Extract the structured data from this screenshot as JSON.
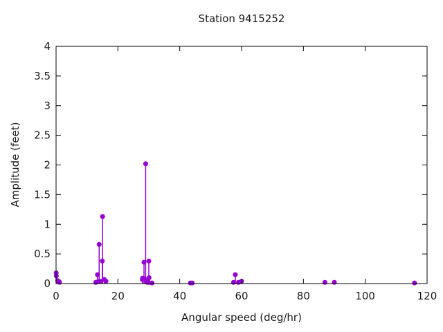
{
  "title": "Station 9415252",
  "colors": {
    "accent": "#9400d3",
    "axis": "#000000",
    "text": "#1a1a1a",
    "background": "#ffffff"
  },
  "chart_data": {
    "type": "scatter",
    "style": "stem",
    "title": "Station 9415252",
    "xlabel": "Angular speed (deg/hr)",
    "ylabel": "Amplitude (feet)",
    "xlim": [
      0,
      120
    ],
    "ylim": [
      0,
      4
    ],
    "grid": false,
    "legend": "none",
    "xticks": {
      "values": [
        0,
        20,
        40,
        60,
        80,
        100,
        120
      ],
      "labels": [
        "0",
        "20",
        "40",
        "60",
        "80",
        "100",
        "120"
      ]
    },
    "yticks": {
      "values": [
        0,
        0.5,
        1,
        1.5,
        2,
        2.5,
        3,
        3.5,
        4
      ],
      "labels": [
        "0",
        "0.5",
        "1",
        "1.5",
        "2",
        "2.5",
        "3",
        "3.5",
        "4"
      ]
    },
    "series": [
      {
        "name": "constituent-amplitudes",
        "color": "#9400d3",
        "points": [
          [
            0.041,
            0.18
          ],
          [
            0.082,
            0.13
          ],
          [
            0.544,
            0.05
          ],
          [
            1.016,
            0.03
          ],
          [
            1.098,
            0.02
          ],
          [
            12.85,
            0.02
          ],
          [
            13.4,
            0.15
          ],
          [
            13.47,
            0.03
          ],
          [
            13.94,
            0.66
          ],
          [
            14.49,
            0.04
          ],
          [
            14.96,
            0.38
          ],
          [
            15.04,
            1.13
          ],
          [
            15.58,
            0.07
          ],
          [
            16.14,
            0.04
          ],
          [
            27.9,
            0.07
          ],
          [
            27.97,
            0.09
          ],
          [
            28.44,
            0.36
          ],
          [
            28.51,
            0.08
          ],
          [
            28.98,
            2.02
          ],
          [
            29.46,
            0.02
          ],
          [
            29.53,
            0.06
          ],
          [
            29.96,
            0.02
          ],
          [
            30.0,
            0.38
          ],
          [
            30.08,
            0.1
          ],
          [
            31.02,
            0.01
          ],
          [
            43.48,
            0.01
          ],
          [
            44.03,
            0.01
          ],
          [
            57.42,
            0.02
          ],
          [
            57.97,
            0.15
          ],
          [
            58.98,
            0.02
          ],
          [
            60.0,
            0.04
          ],
          [
            86.95,
            0.02
          ],
          [
            90.0,
            0.02
          ],
          [
            115.94,
            0.01
          ]
        ]
      }
    ]
  }
}
